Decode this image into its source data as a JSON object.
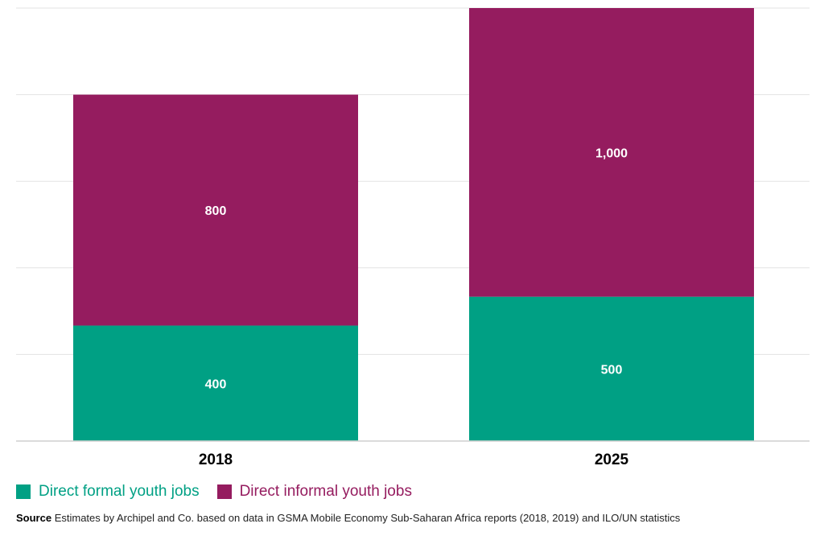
{
  "chart_data": {
    "type": "bar",
    "stacked": true,
    "categories": [
      "2018",
      "2025"
    ],
    "series": [
      {
        "name": "Direct formal youth jobs",
        "values": [
          400,
          500
        ],
        "color": "#00a084"
      },
      {
        "name": "Direct informal youth jobs",
        "values": [
          800,
          1000
        ],
        "color": "#951c5f"
      }
    ],
    "data_labels": [
      [
        "400",
        "500"
      ],
      [
        "800",
        "1,000"
      ]
    ],
    "ylim": [
      0,
      1500
    ],
    "ytick_step": 300,
    "grid": true,
    "legend_position": "bottom-left"
  },
  "source": {
    "label": "Source",
    "text": "Estimates by Archipel and Co. based on data in GSMA Mobile Economy Sub-Saharan Africa reports (2018, 2019) and ILO/UN statistics"
  }
}
